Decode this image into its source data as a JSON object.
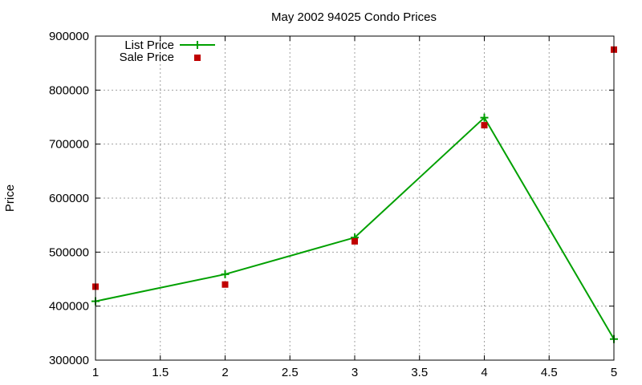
{
  "chart_data": {
    "type": "line",
    "title": "May 2002 94025 Condo Prices",
    "xlabel": "",
    "ylabel": "Price",
    "xlim": [
      1,
      5
    ],
    "ylim": [
      300000,
      900000
    ],
    "x_ticks": [
      "1",
      "1.5",
      "2",
      "2.5",
      "3",
      "3.5",
      "4",
      "4.5",
      "5"
    ],
    "y_ticks": [
      "300000",
      "400000",
      "500000",
      "600000",
      "700000",
      "800000",
      "900000"
    ],
    "grid": true,
    "legend_position": "top-left",
    "series": [
      {
        "name": "List Price",
        "style": "line-with-plus-markers",
        "color": "#00a000",
        "x": [
          1,
          2,
          3,
          4,
          5
        ],
        "y": [
          409000,
          459000,
          527000,
          749000,
          339000
        ]
      },
      {
        "name": "Sale Price",
        "style": "square-markers",
        "color": "#c00000",
        "x": [
          1,
          2,
          3,
          4,
          5
        ],
        "y": [
          436000,
          440000,
          520000,
          735000,
          875000
        ]
      }
    ]
  }
}
